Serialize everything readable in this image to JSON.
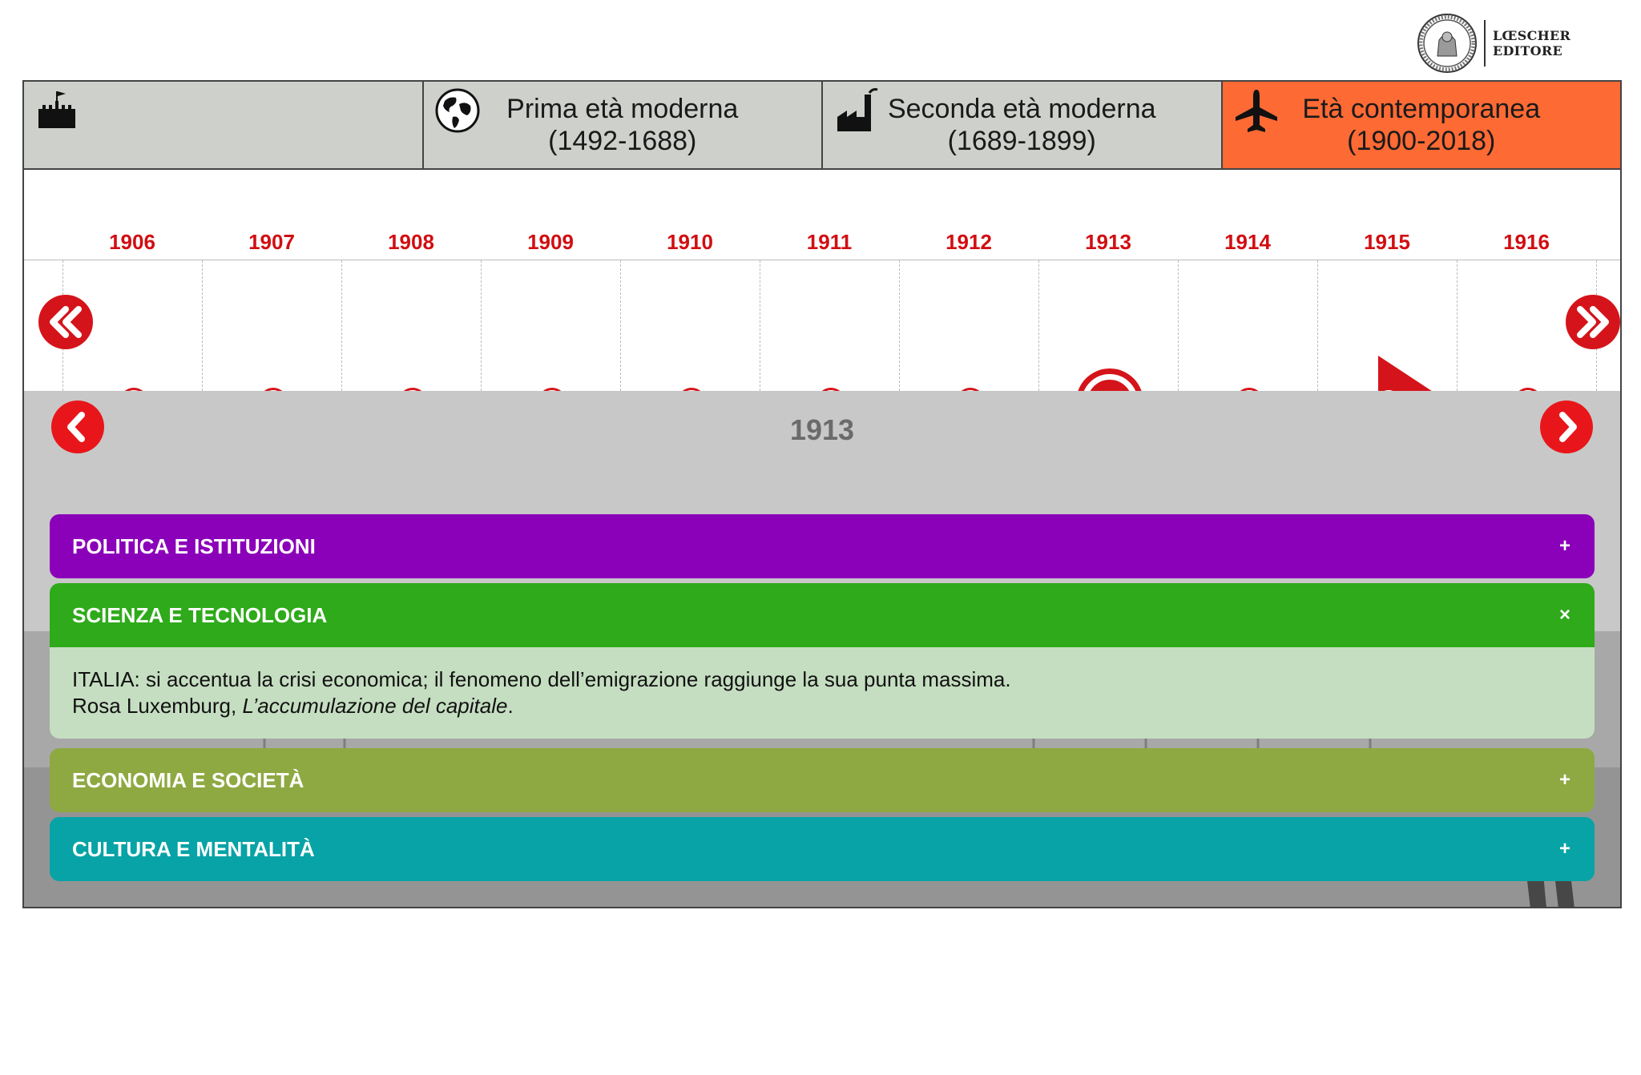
{
  "logo": {
    "line1": "LŒSCHER",
    "line2": "EDITORE"
  },
  "eras": [
    {
      "label_l1": "",
      "label_l2": "",
      "icon": "castle-icon",
      "active": false
    },
    {
      "label_l1": "Prima età moderna",
      "label_l2": "(1492-1688)",
      "icon": "globe-icon",
      "active": false
    },
    {
      "label_l1": "Seconda età moderna",
      "label_l2": "(1689-1899)",
      "icon": "factory-icon",
      "active": false
    },
    {
      "label_l1": "Età contemporanea",
      "label_l2": "(1900-2018)",
      "icon": "airplane-icon",
      "active": true
    }
  ],
  "timeline": {
    "years": [
      "1906",
      "1907",
      "1908",
      "1909",
      "1910",
      "1911",
      "1912",
      "1913",
      "1914",
      "1915",
      "1916"
    ],
    "selected": "1913"
  },
  "content": {
    "year": "1913",
    "sections": [
      {
        "title": "POLITICA E ISTITUZIONI",
        "sign": "+",
        "color": "#8b00b9",
        "expanded": false
      },
      {
        "title": "SCIENZA E TECNOLOGIA",
        "sign": "×",
        "color": "#2eaa1a",
        "expanded": true,
        "body_line1": "ITALIA: si accentua la crisi economica; il fenomeno dell’emigrazione raggiunge la sua punta massima.",
        "body_line2_author": "Rosa Luxemburg, ",
        "body_line2_title": "L’accumulazione del capitale",
        "body_line2_end": "."
      },
      {
        "title": "ECONOMIA E SOCIETÀ",
        "sign": "+",
        "color": "#8ea942",
        "expanded": false
      },
      {
        "title": "CULTURA E MENTALITÀ",
        "sign": "+",
        "color": "#07a3a6",
        "expanded": false
      }
    ]
  },
  "colors": {
    "accent_red": "#d4141a",
    "active_era": "#fe6a34",
    "era_bg": "#cdd0cb"
  }
}
